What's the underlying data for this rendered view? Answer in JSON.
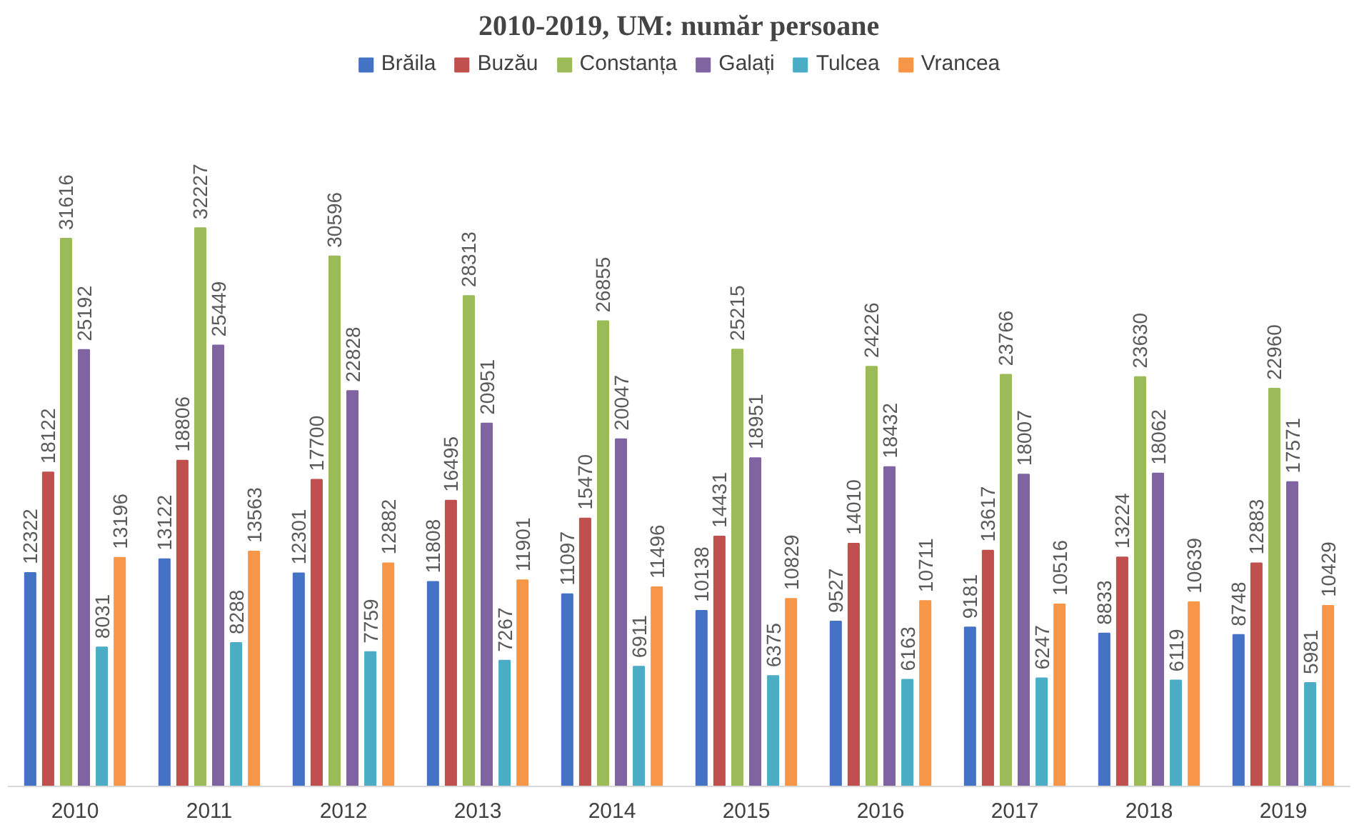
{
  "chart_data": {
    "type": "bar",
    "title": "2010-2019, UM: număr persoane",
    "categories": [
      "2010",
      "2011",
      "2012",
      "2013",
      "2014",
      "2015",
      "2016",
      "2017",
      "2018",
      "2019"
    ],
    "series": [
      {
        "name": "Brăila",
        "color": "#4472c4",
        "values": [
          12322,
          13122,
          12301,
          11808,
          11097,
          10138,
          9527,
          9181,
          8833,
          8748
        ]
      },
      {
        "name": "Buzău",
        "color": "#c0504d",
        "values": [
          18122,
          18806,
          17700,
          16495,
          15470,
          14431,
          14010,
          13617,
          13224,
          12883
        ]
      },
      {
        "name": "Constanța",
        "color": "#9bbb59",
        "values": [
          31616,
          32227,
          30596,
          28313,
          26855,
          25215,
          24226,
          23766,
          23630,
          22960
        ]
      },
      {
        "name": "Galați",
        "color": "#8064a2",
        "values": [
          25192,
          25449,
          22828,
          20951,
          20047,
          18951,
          18432,
          18007,
          18062,
          17571
        ]
      },
      {
        "name": "Tulcea",
        "color": "#4bacc6",
        "values": [
          8031,
          8288,
          7759,
          7267,
          6911,
          6375,
          6163,
          6247,
          6119,
          5981
        ]
      },
      {
        "name": "Vrancea",
        "color": "#f79646",
        "values": [
          13196,
          13563,
          12882,
          11901,
          11496,
          10829,
          10711,
          10516,
          10639,
          10429
        ]
      }
    ],
    "data_labels": true,
    "legend": "top",
    "grid": false,
    "tick_labels": "x"
  }
}
